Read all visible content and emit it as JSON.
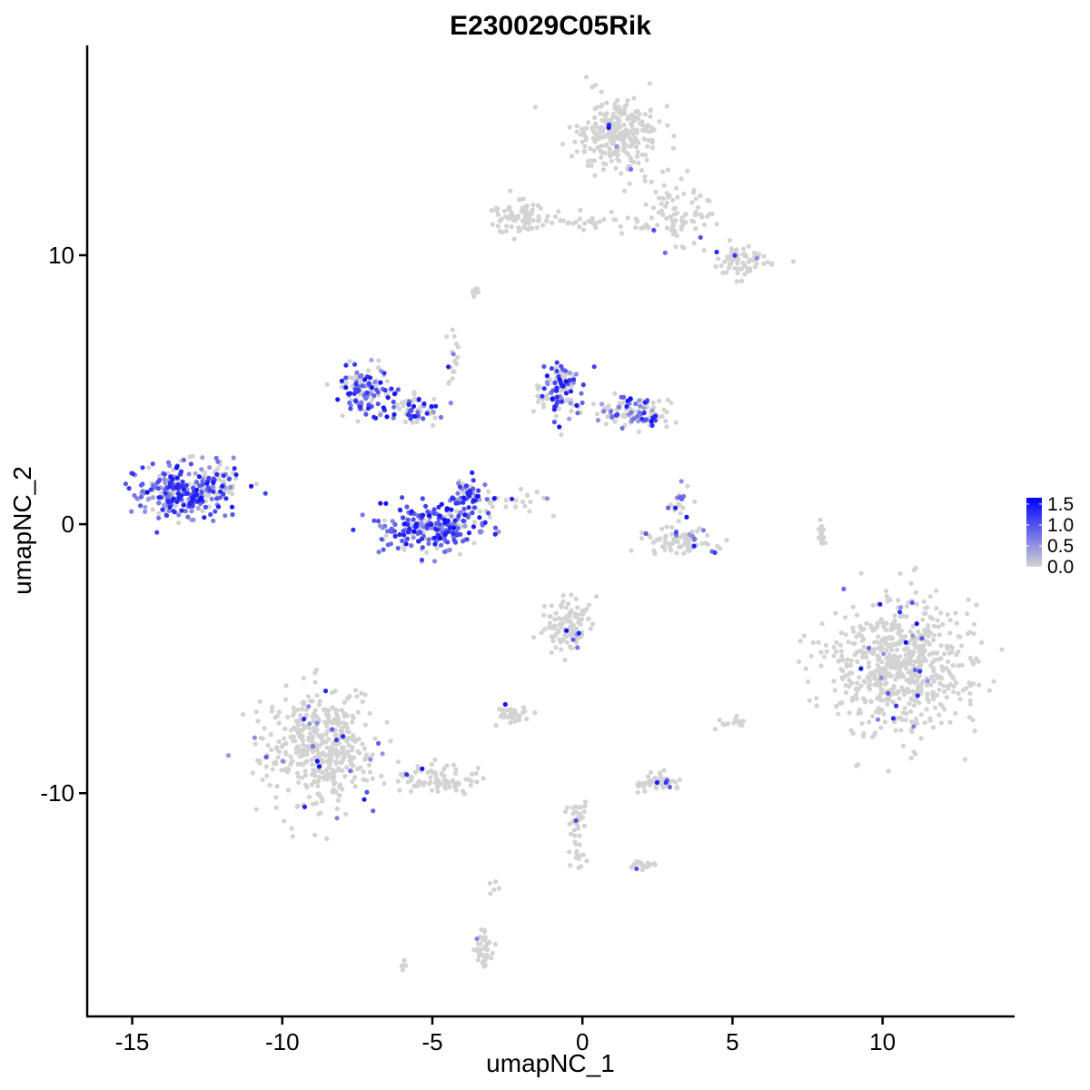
{
  "chart_data": {
    "type": "scatter",
    "title": "E230029C05Rik",
    "xlabel": "umapNC_1",
    "ylabel": "umapNC_2",
    "xlim": [
      -16.5,
      14.4
    ],
    "ylim": [
      -18.3,
      17.8
    ],
    "x_ticks": [
      -15,
      -10,
      -5,
      0,
      5,
      10
    ],
    "x_tick_labels": [
      "-15",
      "-10",
      "-5",
      "0",
      "5",
      "10"
    ],
    "y_ticks": [
      -10,
      0,
      10
    ],
    "y_tick_labels": [
      "-10",
      "0",
      "10"
    ],
    "grid": false,
    "legend": {
      "placement": "right",
      "type": "colorbar",
      "ticks": [
        0.0,
        0.5,
        1.0,
        1.5
      ],
      "tick_labels": [
        "0.0",
        "0.5",
        "1.0",
        "1.5"
      ],
      "range": [
        0,
        1.65
      ],
      "low_color": "#d3d3d3",
      "high_color": "#0000ff"
    },
    "point_base_color": "#d3d3d3",
    "clusters": [
      {
        "cx": 1.2,
        "cy": 14.5,
        "rx": 1.2,
        "ry": 1.3,
        "n": 260,
        "expr_frac": 0.03
      },
      {
        "cx": 3.3,
        "cy": 11.5,
        "rx": 1.2,
        "ry": 1.1,
        "n": 90,
        "expr_frac": 0.03
      },
      {
        "cx": 5.3,
        "cy": 9.8,
        "rx": 0.9,
        "ry": 0.5,
        "n": 70,
        "expr_frac": 0.05
      },
      {
        "cx": -2.2,
        "cy": 11.4,
        "rx": 0.9,
        "ry": 0.6,
        "n": 70,
        "expr_frac": 0.02
      },
      {
        "cx": 0.5,
        "cy": 11.2,
        "rx": 1.6,
        "ry": 0.3,
        "n": 40,
        "expr_frac": 0.02
      },
      {
        "cx": -7.3,
        "cy": 5.0,
        "rx": 0.8,
        "ry": 0.8,
        "n": 110,
        "expr_frac": 0.65
      },
      {
        "cx": -5.6,
        "cy": 4.3,
        "rx": 1.0,
        "ry": 0.6,
        "n": 70,
        "expr_frac": 0.45
      },
      {
        "cx": -0.8,
        "cy": 5.0,
        "rx": 0.7,
        "ry": 1.1,
        "n": 110,
        "expr_frac": 0.5
      },
      {
        "cx": 1.7,
        "cy": 4.2,
        "rx": 1.2,
        "ry": 0.6,
        "n": 110,
        "expr_frac": 0.5
      },
      {
        "cx": -13.5,
        "cy": 1.2,
        "rx": 1.4,
        "ry": 0.9,
        "n": 260,
        "expr_frac": 0.7
      },
      {
        "cx": -12.1,
        "cy": 1.4,
        "rx": 0.6,
        "ry": 0.8,
        "n": 60,
        "expr_frac": 0.4
      },
      {
        "cx": -5.0,
        "cy": -0.1,
        "rx": 1.6,
        "ry": 0.8,
        "n": 260,
        "expr_frac": 0.75
      },
      {
        "cx": -3.9,
        "cy": 1.0,
        "rx": 0.5,
        "ry": 0.6,
        "n": 60,
        "expr_frac": 0.7
      },
      {
        "cx": 3.4,
        "cy": -0.6,
        "rx": 1.2,
        "ry": 0.4,
        "n": 80,
        "expr_frac": 0.2
      },
      {
        "cx": 3.2,
        "cy": 0.7,
        "rx": 0.3,
        "ry": 0.5,
        "n": 20,
        "expr_frac": 0.5
      },
      {
        "cx": 10.6,
        "cy": -5.3,
        "rx": 2.2,
        "ry": 2.2,
        "n": 650,
        "expr_frac": 0.03
      },
      {
        "cx": -8.7,
        "cy": -8.3,
        "rx": 1.6,
        "ry": 1.8,
        "n": 460,
        "expr_frac": 0.05
      },
      {
        "cx": -4.8,
        "cy": -9.5,
        "rx": 1.3,
        "ry": 0.5,
        "n": 80,
        "expr_frac": 0.02
      },
      {
        "cx": -0.5,
        "cy": -3.8,
        "rx": 0.7,
        "ry": 0.9,
        "n": 110,
        "expr_frac": 0.05
      },
      {
        "cx": -2.4,
        "cy": -7.1,
        "rx": 0.5,
        "ry": 0.3,
        "n": 40,
        "expr_frac": 0.03
      },
      {
        "cx": 2.5,
        "cy": -9.6,
        "rx": 0.7,
        "ry": 0.25,
        "n": 50,
        "expr_frac": 0.04
      },
      {
        "cx": -0.2,
        "cy": -11.2,
        "rx": 0.3,
        "ry": 1.4,
        "n": 50,
        "expr_frac": 0.04
      },
      {
        "cx": 2.0,
        "cy": -12.7,
        "rx": 0.5,
        "ry": 0.2,
        "n": 20,
        "expr_frac": 0.05
      },
      {
        "cx": -3.3,
        "cy": -15.8,
        "rx": 0.3,
        "ry": 0.7,
        "n": 40,
        "expr_frac": 0.02
      },
      {
        "cx": 5.0,
        "cy": -7.4,
        "rx": 0.4,
        "ry": 0.2,
        "n": 15,
        "expr_frac": 0.05
      },
      {
        "cx": 8.0,
        "cy": -0.3,
        "rx": 0.15,
        "ry": 0.6,
        "n": 15,
        "expr_frac": 0.05
      },
      {
        "cx": -4.3,
        "cy": 6.2,
        "rx": 0.2,
        "ry": 1.0,
        "n": 18,
        "expr_frac": 0.05
      },
      {
        "cx": -3.0,
        "cy": -13.5,
        "rx": 0.15,
        "ry": 0.3,
        "n": 5,
        "expr_frac": 0.0
      },
      {
        "cx": -2.5,
        "cy": 1.0,
        "rx": 1.2,
        "ry": 0.5,
        "n": 25,
        "expr_frac": 0.1
      },
      {
        "cx": -3.5,
        "cy": 8.6,
        "rx": 0.3,
        "ry": 0.2,
        "n": 8,
        "expr_frac": 0.0
      },
      {
        "cx": -6.0,
        "cy": -16.4,
        "rx": 0.2,
        "ry": 0.15,
        "n": 6,
        "expr_frac": 0.0
      }
    ]
  }
}
